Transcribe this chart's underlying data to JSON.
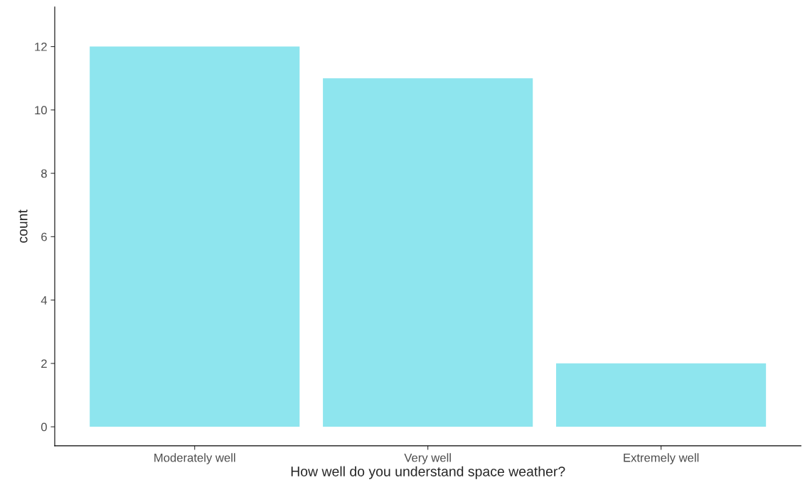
{
  "chart_data": {
    "type": "bar",
    "xlabel": "How well do you understand space weather?",
    "ylabel": "count",
    "categories": [
      "Moderately well",
      "Very well",
      "Extremely well"
    ],
    "values": [
      12,
      11,
      2
    ],
    "color": "#8ee5ee",
    "ylim": [
      -0.6,
      13.25
    ],
    "yticks": [
      0,
      2,
      4,
      6,
      8,
      10,
      12
    ],
    "grid": false,
    "legend": false
  }
}
